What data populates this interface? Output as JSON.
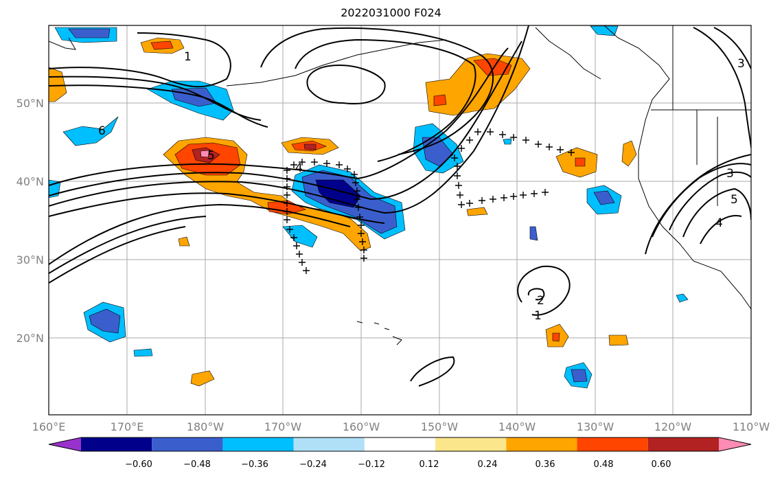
{
  "title": "2022031000 F024",
  "x_ticks": [
    "160°E",
    "170°E",
    "180°W",
    "170°W",
    "160°W",
    "150°W",
    "140°W",
    "130°W",
    "120°W",
    "110°W"
  ],
  "y_ticks": [
    "50°N",
    "40°N",
    "30°N",
    "20°N"
  ],
  "colorbar": {
    "ticks": [
      "−0.60",
      "−0.48",
      "−0.36",
      "−0.24",
      "−0.12",
      "0.12",
      "0.24",
      "0.36",
      "0.48",
      "0.60"
    ],
    "colors": [
      "#9932cc",
      "#00008b",
      "#3a5fcd",
      "#00bfff",
      "#b0e0f8",
      "#ffffff",
      "#fce68c",
      "#ffa500",
      "#ff4500",
      "#b22222",
      "#ff8cb4"
    ]
  },
  "contour_labels": [
    "1",
    "6",
    "5",
    "4",
    "2",
    "1",
    "3",
    "3",
    "5",
    "4"
  ]
}
